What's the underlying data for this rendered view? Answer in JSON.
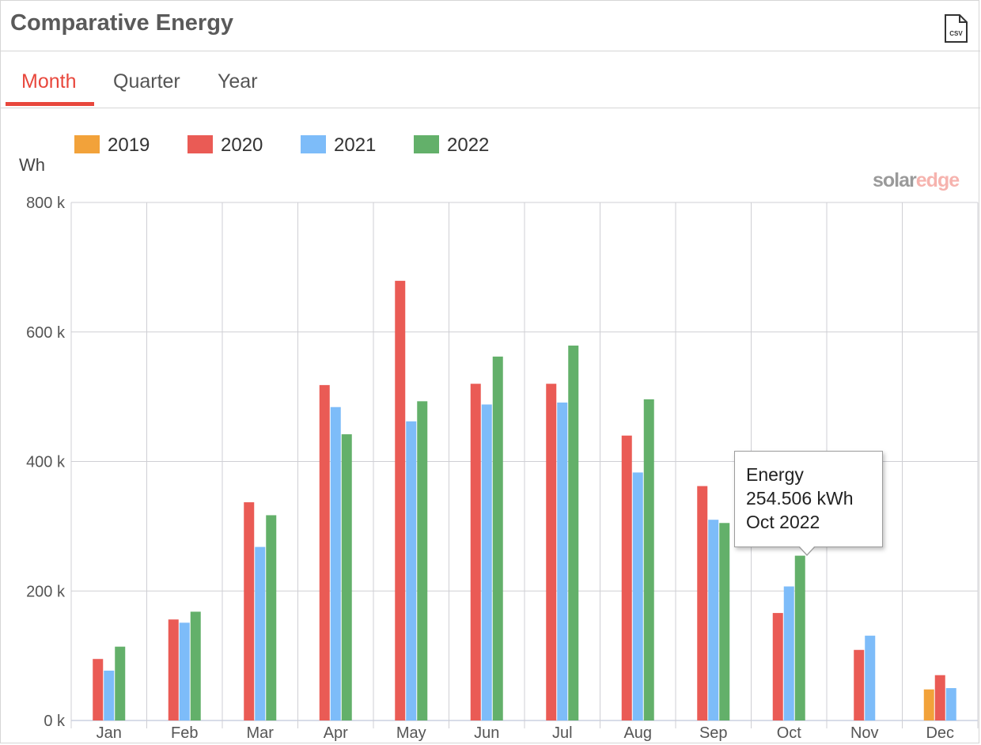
{
  "header": {
    "title": "Comparative Energy",
    "csv_icon": "csv-file-icon",
    "csv_label": "CSV"
  },
  "tabs": [
    {
      "label": "Month",
      "active": true
    },
    {
      "label": "Quarter",
      "active": false
    },
    {
      "label": "Year",
      "active": false
    }
  ],
  "brand": {
    "solar": "solar",
    "edge": "edge"
  },
  "colors": {
    "accent": "#e8473c",
    "grid": "#cfcfd4",
    "axis": "#b0b8d0"
  },
  "tooltip": {
    "title": "Energy",
    "value": "254.506 kWh",
    "period": "Oct 2022"
  },
  "chart_data": {
    "type": "bar",
    "ylabel": "Wh",
    "ylim": [
      0,
      800000
    ],
    "yticks": [
      {
        "value": 0,
        "label": "0 k"
      },
      {
        "value": 200000,
        "label": "200 k"
      },
      {
        "value": 400000,
        "label": "400 k"
      },
      {
        "value": 600000,
        "label": "600 k"
      },
      {
        "value": 800000,
        "label": "800 k"
      }
    ],
    "grid": true,
    "legend_position": "top-left",
    "categories": [
      "Jan",
      "Feb",
      "Mar",
      "Apr",
      "May",
      "Jun",
      "Jul",
      "Aug",
      "Sep",
      "Oct",
      "Nov",
      "Dec"
    ],
    "series": [
      {
        "name": "2019",
        "color": "#f2a23a",
        "values": [
          null,
          null,
          null,
          null,
          null,
          null,
          null,
          null,
          null,
          null,
          null,
          48000
        ]
      },
      {
        "name": "2020",
        "color": "#ea5b55",
        "values": [
          95000,
          156000,
          337000,
          518000,
          679000,
          520000,
          520000,
          440000,
          362000,
          166000,
          109000,
          70000
        ]
      },
      {
        "name": "2021",
        "color": "#7dbcf9",
        "values": [
          77000,
          151000,
          268000,
          484000,
          462000,
          488000,
          491000,
          383000,
          310000,
          207000,
          131000,
          50000
        ]
      },
      {
        "name": "2022",
        "color": "#63b06a",
        "values": [
          114000,
          168000,
          317000,
          442000,
          493000,
          562000,
          579000,
          496000,
          305000,
          254506,
          null,
          null
        ]
      }
    ]
  }
}
